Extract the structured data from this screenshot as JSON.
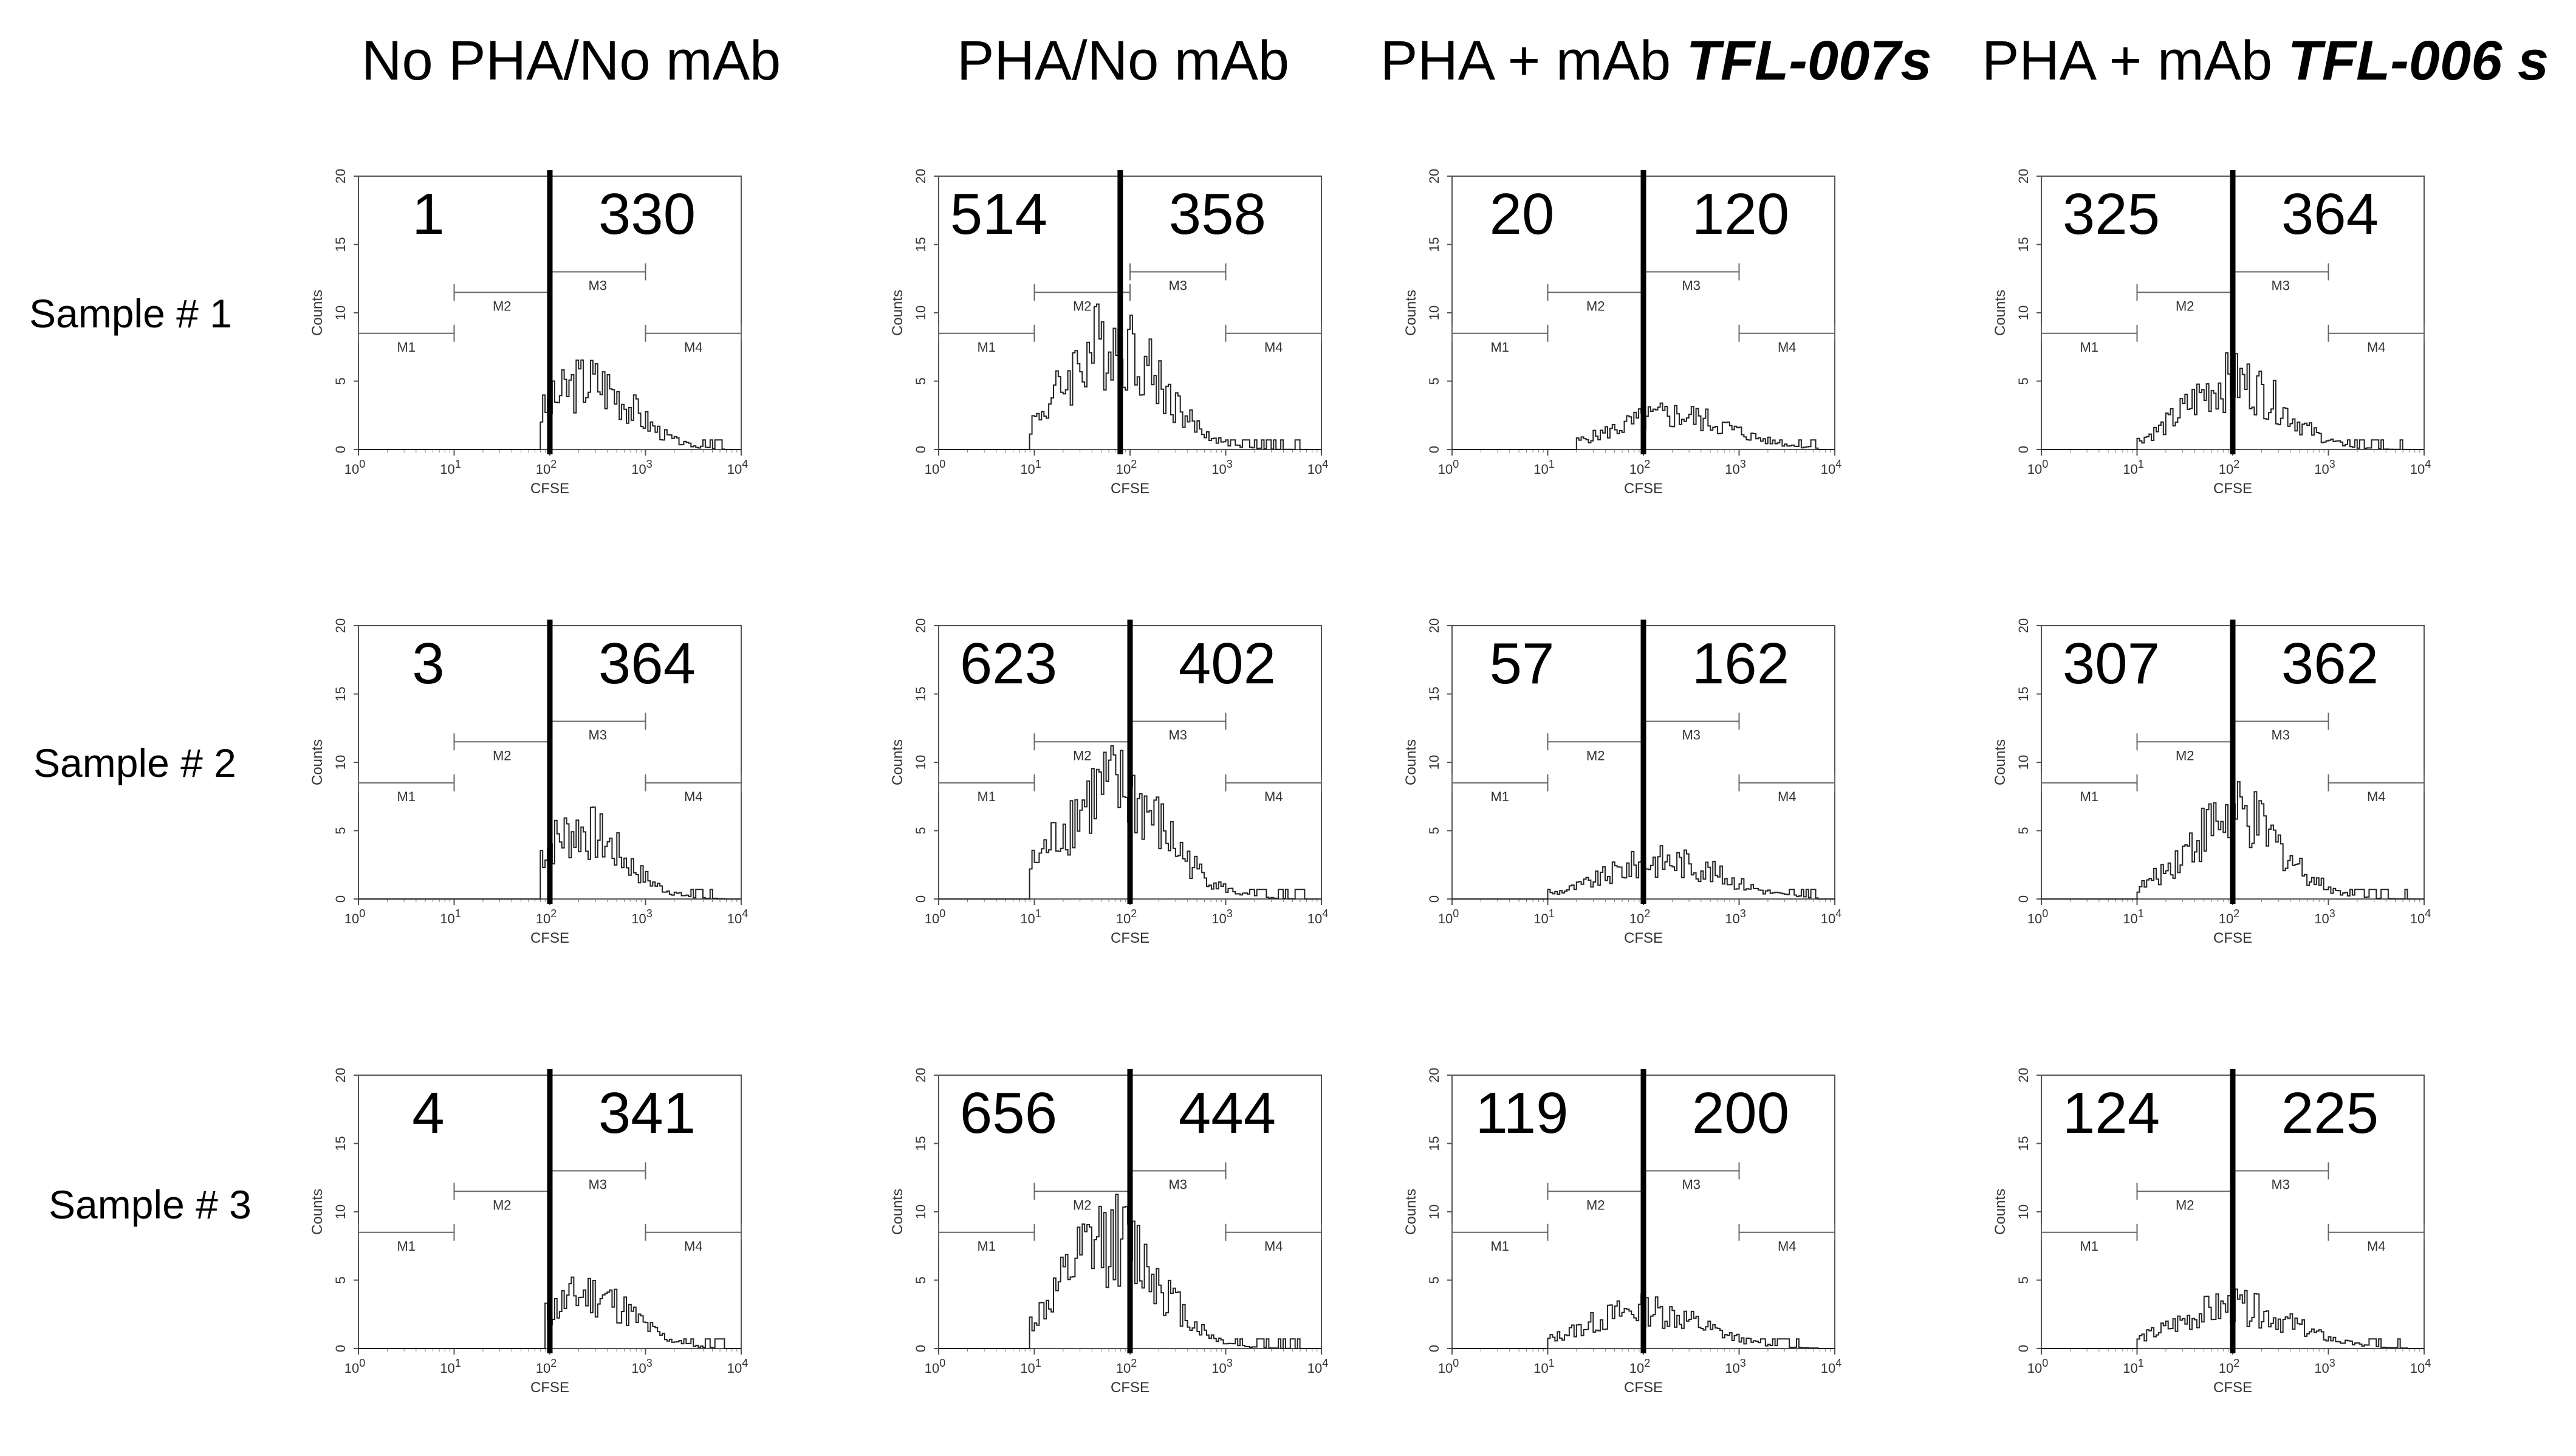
{
  "column_headers": [
    {
      "text": "No PHA/No mAb",
      "mab": ""
    },
    {
      "text": "PHA/No mAb",
      "mab": ""
    },
    {
      "text": "PHA + mAb ",
      "mab": "TFL-007s"
    },
    {
      "text": "PHA + mAb ",
      "mab": "TFL-006 s"
    }
  ],
  "row_labels": [
    "Sample # 1",
    "Sample # 2",
    "Sample # 3"
  ],
  "chart_data": {
    "type": "histogram-grid",
    "xlabel": "CFSE",
    "ylabel": "Counts",
    "xscale": "log",
    "xlim": [
      1,
      10000
    ],
    "ylim": [
      0,
      20
    ],
    "yticks": [
      "0",
      "5",
      "10",
      "15",
      "20"
    ],
    "xtick_bases": [
      "10",
      "10",
      "10",
      "10",
      "10"
    ],
    "xtick_exps": [
      "0",
      "1",
      "2",
      "3",
      "4"
    ],
    "markers": [
      {
        "name": "M1",
        "range": [
          1,
          10
        ],
        "level": 8.5
      },
      {
        "name": "M2",
        "range": [
          10,
          100
        ],
        "level": 11.5
      },
      {
        "name": "M3",
        "range": [
          100,
          1000
        ],
        "level": 13
      },
      {
        "name": "M4",
        "range": [
          1000,
          10000
        ],
        "level": 8.5
      }
    ],
    "panels": [
      {
        "sample": 1,
        "condition": "No PHA/No mAb",
        "left": "1",
        "right": "330",
        "divider": 100,
        "peak_log": 2.4,
        "spread": 0.45,
        "height": 5,
        "start_log": 1.9
      },
      {
        "sample": 1,
        "condition": "PHA/No mAb",
        "left": "514",
        "right": "358",
        "divider": 79,
        "peak_log": 1.8,
        "spread": 0.5,
        "height": 8,
        "start_log": 0.95
      },
      {
        "sample": 1,
        "condition": "PHA + mAb TFL-007s",
        "left": "20",
        "right": "120",
        "divider": 100,
        "peak_log": 2.3,
        "spread": 0.6,
        "height": 2.5,
        "start_log": 1.3
      },
      {
        "sample": 1,
        "condition": "PHA + mAb TFL-006s",
        "left": "325",
        "right": "364",
        "divider": 100,
        "peak_log": 2.0,
        "spread": 0.5,
        "height": 5,
        "start_log": 1.0
      },
      {
        "sample": 2,
        "condition": "No PHA/No mAb",
        "left": "3",
        "right": "364",
        "divider": 100,
        "peak_log": 2.3,
        "spread": 0.45,
        "height": 5,
        "start_log": 1.9
      },
      {
        "sample": 2,
        "condition": "PHA/No mAb",
        "left": "623",
        "right": "402",
        "divider": 100,
        "peak_log": 1.8,
        "spread": 0.55,
        "height": 8,
        "start_log": 0.95
      },
      {
        "sample": 2,
        "condition": "PHA + mAb TFL-007s",
        "left": "57",
        "right": "162",
        "divider": 100,
        "peak_log": 2.2,
        "spread": 0.6,
        "height": 2.8,
        "start_log": 1.0
      },
      {
        "sample": 2,
        "condition": "PHA + mAb TFL-006s",
        "left": "307",
        "right": "362",
        "divider": 100,
        "peak_log": 2.0,
        "spread": 0.5,
        "height": 6,
        "start_log": 1.0
      },
      {
        "sample": 3,
        "condition": "No PHA/No mAb",
        "left": "4",
        "right": "341",
        "divider": 100,
        "peak_log": 2.4,
        "spread": 0.45,
        "height": 4,
        "start_log": 1.95
      },
      {
        "sample": 3,
        "condition": "PHA/No mAb",
        "left": "656",
        "right": "444",
        "divider": 100,
        "peak_log": 1.8,
        "spread": 0.5,
        "height": 8,
        "start_log": 0.95
      },
      {
        "sample": 3,
        "condition": "PHA + mAb TFL-007s",
        "left": "119",
        "right": "200",
        "divider": 100,
        "peak_log": 2.0,
        "spread": 0.6,
        "height": 2.8,
        "start_log": 1.0
      },
      {
        "sample": 3,
        "condition": "PHA + mAb TFL-006s",
        "left": "124",
        "right": "225",
        "divider": 100,
        "peak_log": 2.0,
        "spread": 0.6,
        "height": 3,
        "start_log": 1.0
      }
    ]
  }
}
